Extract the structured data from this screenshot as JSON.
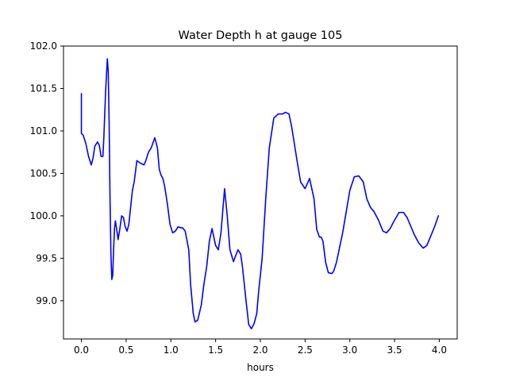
{
  "chart_data": {
    "type": "line",
    "title": "Water Depth h at gauge 105",
    "xlabel": "hours",
    "ylabel": "",
    "xlim": [
      -0.2,
      4.2
    ],
    "ylim": [
      98.55,
      102.0
    ],
    "xticks": [
      0.0,
      0.5,
      1.0,
      1.5,
      2.0,
      2.5,
      3.0,
      3.5,
      4.0
    ],
    "xtick_labels": [
      "0.0",
      "0.5",
      "1.0",
      "1.5",
      "2.0",
      "2.5",
      "3.0",
      "3.5",
      "4.0"
    ],
    "yticks": [
      99.0,
      99.5,
      100.0,
      100.5,
      101.0,
      101.5,
      102.0
    ],
    "ytick_labels": [
      "99.0",
      "99.5",
      "100.0",
      "100.5",
      "101.0",
      "101.5",
      "102.0"
    ],
    "grid": false,
    "series": [
      {
        "color": "#0000ff",
        "x": [
          0.0,
          0.0,
          0.0,
          0.02,
          0.05,
          0.08,
          0.11,
          0.13,
          0.15,
          0.18,
          0.2,
          0.22,
          0.24,
          0.25,
          0.27,
          0.29,
          0.3,
          0.31,
          0.32,
          0.33,
          0.34,
          0.35,
          0.36,
          0.37,
          0.38,
          0.4,
          0.41,
          0.43,
          0.45,
          0.47,
          0.49,
          0.51,
          0.53,
          0.55,
          0.57,
          0.59,
          0.62,
          0.66,
          0.7,
          0.72,
          0.75,
          0.78,
          0.82,
          0.85,
          0.87,
          0.89,
          0.91,
          0.93,
          0.96,
          0.99,
          1.02,
          1.05,
          1.08,
          1.11,
          1.13,
          1.16,
          1.2,
          1.22,
          1.25,
          1.27,
          1.3,
          1.34,
          1.37,
          1.4,
          1.43,
          1.46,
          1.5,
          1.53,
          1.56,
          1.6,
          1.63,
          1.66,
          1.7,
          1.72,
          1.75,
          1.78,
          1.8,
          1.84,
          1.87,
          1.9,
          1.93,
          1.96,
          1.98,
          2.02,
          2.06,
          2.1,
          2.15,
          2.2,
          2.25,
          2.28,
          2.32,
          2.35,
          2.38,
          2.41,
          2.45,
          2.5,
          2.55,
          2.6,
          2.63,
          2.66,
          2.68,
          2.7,
          2.73,
          2.76,
          2.8,
          2.82,
          2.85,
          2.88,
          2.92,
          2.96,
          3.0,
          3.05,
          3.1,
          3.15,
          3.19,
          3.23,
          3.27,
          3.32,
          3.37,
          3.41,
          3.45,
          3.5,
          3.55,
          3.6,
          3.64,
          3.68,
          3.72,
          3.77,
          3.82,
          3.86,
          3.9,
          3.95,
          3.99
        ],
        "y": [
          101.44,
          101.05,
          100.97,
          100.95,
          100.85,
          100.7,
          100.6,
          100.68,
          100.82,
          100.87,
          100.83,
          100.7,
          100.7,
          100.9,
          101.45,
          101.85,
          101.7,
          101.1,
          100.2,
          99.55,
          99.25,
          99.3,
          99.6,
          99.85,
          99.94,
          99.8,
          99.72,
          99.85,
          100.0,
          99.98,
          99.87,
          99.82,
          99.9,
          100.1,
          100.3,
          100.4,
          100.65,
          100.62,
          100.6,
          100.65,
          100.75,
          100.8,
          100.92,
          100.8,
          100.55,
          100.48,
          100.44,
          100.35,
          100.15,
          99.9,
          99.8,
          99.82,
          99.87,
          99.86,
          99.86,
          99.82,
          99.6,
          99.2,
          98.85,
          98.75,
          98.77,
          98.95,
          99.2,
          99.4,
          99.7,
          99.85,
          99.65,
          99.6,
          99.8,
          100.32,
          100.0,
          99.6,
          99.46,
          99.52,
          99.6,
          99.55,
          99.4,
          99.0,
          98.72,
          98.67,
          98.73,
          98.85,
          99.1,
          99.5,
          100.2,
          100.8,
          101.15,
          101.2,
          101.2,
          101.22,
          101.2,
          101.05,
          100.85,
          100.65,
          100.4,
          100.32,
          100.44,
          100.2,
          99.84,
          99.75,
          99.75,
          99.7,
          99.45,
          99.33,
          99.32,
          99.35,
          99.45,
          99.6,
          99.8,
          100.05,
          100.3,
          100.46,
          100.47,
          100.4,
          100.2,
          100.1,
          100.05,
          99.95,
          99.82,
          99.8,
          99.85,
          99.95,
          100.04,
          100.04,
          99.98,
          99.88,
          99.78,
          99.68,
          99.62,
          99.65,
          99.75,
          99.88,
          100.0
        ]
      }
    ]
  }
}
